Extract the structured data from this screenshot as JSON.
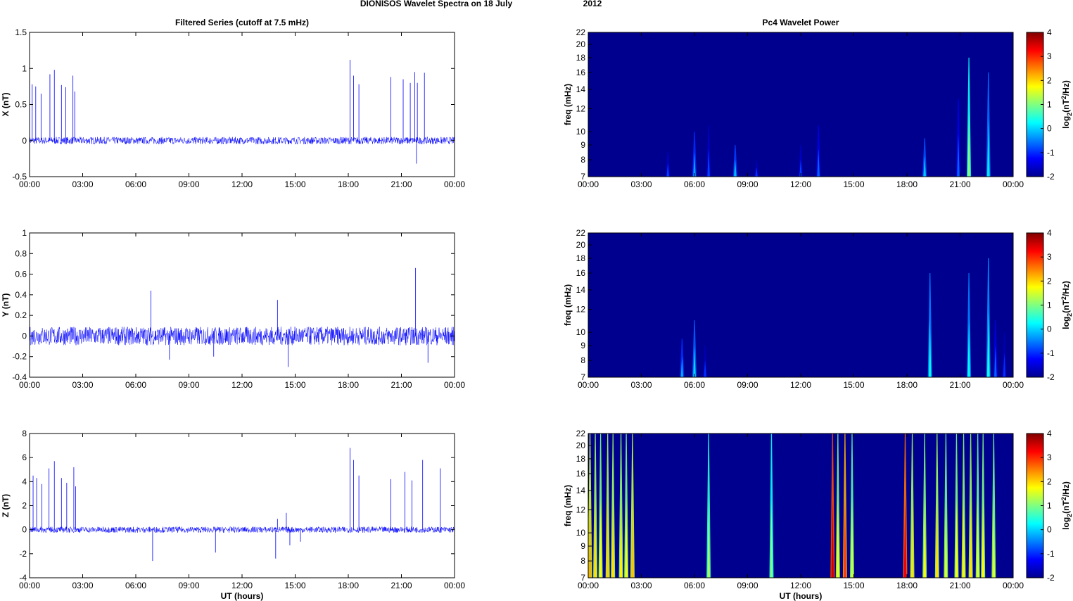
{
  "figure_title_left": "DIONISOS Wavelet Spectra on 18 July",
  "figure_title_right": "2012",
  "colors": {
    "trace": "#0000ff",
    "background": "#00008f"
  },
  "time_ticks": [
    "00:00",
    "03:00",
    "06:00",
    "09:00",
    "12:00",
    "15:00",
    "18:00",
    "21:00",
    "00:00"
  ],
  "chart_data": [
    {
      "type": "line",
      "title": "Filtered Series (cutoff at 7.5 mHz)",
      "xlabel": "",
      "ylabel": "X (nT)",
      "xlim": [
        0,
        24
      ],
      "ylim": [
        -0.5,
        1.5
      ],
      "yticks": [
        "1.5",
        "1",
        "0.5",
        "0",
        "-0.5"
      ],
      "ytick_values": [
        1.5,
        1,
        0.5,
        0,
        -0.5
      ],
      "noise_amplitude": 0.05,
      "spikes": [
        {
          "t": 0.15,
          "v": 0.78
        },
        {
          "t": 0.35,
          "v": 0.75
        },
        {
          "t": 0.65,
          "v": 0.65
        },
        {
          "t": 1.15,
          "v": 0.92
        },
        {
          "t": 1.4,
          "v": 0.98
        },
        {
          "t": 1.8,
          "v": 0.77
        },
        {
          "t": 2.05,
          "v": 0.74
        },
        {
          "t": 2.45,
          "v": 0.9
        },
        {
          "t": 2.55,
          "v": 0.68
        },
        {
          "t": 18.1,
          "v": 1.12
        },
        {
          "t": 18.3,
          "v": 0.9
        },
        {
          "t": 18.6,
          "v": 0.78
        },
        {
          "t": 20.4,
          "v": 0.88
        },
        {
          "t": 21.1,
          "v": 0.85
        },
        {
          "t": 21.5,
          "v": 0.8
        },
        {
          "t": 21.75,
          "v": 0.95
        },
        {
          "t": 21.9,
          "v": 0.8
        },
        {
          "t": 22.3,
          "v": 0.94
        },
        {
          "t": 21.85,
          "v": -0.32
        }
      ]
    },
    {
      "type": "heatmap",
      "title": "Pc4 Wavelet Power",
      "xlabel": "",
      "ylabel": "freq (mHz)",
      "xlim": [
        0,
        24
      ],
      "ylim": [
        7,
        22
      ],
      "yscale": "log",
      "yticks": [
        7,
        8,
        9,
        10,
        12,
        14,
        16,
        18,
        20,
        22
      ],
      "colorbar_label": "log2(nT2/Hz)",
      "colorbar_ticks": [
        4,
        3,
        2,
        1,
        0,
        -1,
        -2
      ],
      "clim": [
        -2,
        4
      ],
      "bursts": [
        {
          "t": 4.5,
          "level": -1.6,
          "fmax": 8.5
        },
        {
          "t": 6.0,
          "level": -1.0,
          "fmax": 10
        },
        {
          "t": 6.8,
          "level": -1.6,
          "fmax": 10.5
        },
        {
          "t": 8.3,
          "level": -0.9,
          "fmax": 9
        },
        {
          "t": 9.5,
          "level": -1.7,
          "fmax": 8
        },
        {
          "t": 12.0,
          "level": -1.6,
          "fmax": 9
        },
        {
          "t": 13.0,
          "level": -1.4,
          "fmax": 10.5
        },
        {
          "t": 19.0,
          "level": -0.8,
          "fmax": 9.5
        },
        {
          "t": 20.9,
          "level": -1.4,
          "fmax": 13
        },
        {
          "t": 21.5,
          "level": 0.3,
          "fmax": 18
        },
        {
          "t": 22.6,
          "level": -0.6,
          "fmax": 16
        }
      ]
    },
    {
      "type": "line",
      "title": "",
      "xlabel": "",
      "ylabel": "Y (nT)",
      "xlim": [
        0,
        24
      ],
      "ylim": [
        -0.4,
        1
      ],
      "yticks": [
        "1",
        "0.8",
        "0.6",
        "0.4",
        "0.2",
        "0",
        "-0.2",
        "-0.4"
      ],
      "ytick_values": [
        1,
        0.8,
        0.6,
        0.4,
        0.2,
        0,
        -0.2,
        -0.4
      ],
      "noise_amplitude": 0.09,
      "spikes": [
        {
          "t": 6.85,
          "v": 0.44
        },
        {
          "t": 14.6,
          "v": -0.3
        },
        {
          "t": 14.0,
          "v": 0.35
        },
        {
          "t": 21.8,
          "v": 0.66
        },
        {
          "t": 22.5,
          "v": -0.26
        },
        {
          "t": 7.9,
          "v": -0.23
        },
        {
          "t": 10.4,
          "v": -0.2
        }
      ]
    },
    {
      "type": "heatmap",
      "title": "",
      "xlabel": "",
      "ylabel": "freq (mHz)",
      "xlim": [
        0,
        24
      ],
      "ylim": [
        7,
        22
      ],
      "yscale": "log",
      "yticks": [
        7,
        8,
        9,
        10,
        12,
        14,
        16,
        18,
        20,
        22
      ],
      "colorbar_label": "log2(nT2/Hz)",
      "colorbar_ticks": [
        4,
        3,
        2,
        1,
        0,
        -1,
        -2
      ],
      "clim": [
        -2,
        4
      ],
      "bursts": [
        {
          "t": 5.3,
          "level": -1.0,
          "fmax": 9.5
        },
        {
          "t": 6.0,
          "level": -0.7,
          "fmax": 11
        },
        {
          "t": 6.6,
          "level": -1.7,
          "fmax": 9
        },
        {
          "t": 19.3,
          "level": -0.5,
          "fmax": 16
        },
        {
          "t": 21.5,
          "level": -0.5,
          "fmax": 16
        },
        {
          "t": 22.6,
          "level": -0.4,
          "fmax": 18
        },
        {
          "t": 23.0,
          "level": -1.4,
          "fmax": 11
        },
        {
          "t": 23.5,
          "level": -1.7,
          "fmax": 10
        }
      ]
    },
    {
      "type": "line",
      "title": "",
      "xlabel": "UT (hours)",
      "ylabel": "Z (nT)",
      "xlim": [
        0,
        24
      ],
      "ylim": [
        -4,
        8
      ],
      "yticks": [
        "8",
        "6",
        "4",
        "2",
        "0",
        "-2",
        "-4"
      ],
      "ytick_values": [
        8,
        6,
        4,
        2,
        0,
        -2,
        -4
      ],
      "noise_amplitude": 0.25,
      "spikes": [
        {
          "t": 0.2,
          "v": 4.5
        },
        {
          "t": 0.4,
          "v": 4.3
        },
        {
          "t": 0.7,
          "v": 3.8
        },
        {
          "t": 1.1,
          "v": 5.1
        },
        {
          "t": 1.4,
          "v": 5.7
        },
        {
          "t": 1.8,
          "v": 4.3
        },
        {
          "t": 2.1,
          "v": 3.9
        },
        {
          "t": 2.5,
          "v": 5.2
        },
        {
          "t": 2.6,
          "v": 3.6
        },
        {
          "t": 6.95,
          "v": -2.6
        },
        {
          "t": 10.5,
          "v": -1.9
        },
        {
          "t": 13.9,
          "v": -2.4
        },
        {
          "t": 14.0,
          "v": 0.9
        },
        {
          "t": 14.5,
          "v": 1.4
        },
        {
          "t": 14.7,
          "v": -1.3
        },
        {
          "t": 15.3,
          "v": -1.0
        },
        {
          "t": 18.1,
          "v": 6.8
        },
        {
          "t": 18.3,
          "v": 5.8
        },
        {
          "t": 18.6,
          "v": 4.5
        },
        {
          "t": 20.4,
          "v": 4.2
        },
        {
          "t": 21.2,
          "v": 4.8
        },
        {
          "t": 21.6,
          "v": 4.1
        },
        {
          "t": 22.2,
          "v": 5.8
        },
        {
          "t": 23.2,
          "v": 5.1
        }
      ]
    },
    {
      "type": "heatmap",
      "title": "",
      "xlabel": "UT (hours)",
      "ylabel": "freq (mHz)",
      "xlim": [
        0,
        24
      ],
      "ylim": [
        7,
        22
      ],
      "yscale": "log",
      "yticks": [
        7,
        8,
        9,
        10,
        12,
        14,
        16,
        18,
        20,
        22
      ],
      "colorbar_label": "log2(nT2/Hz)",
      "colorbar_ticks": [
        4,
        3,
        2,
        1,
        0,
        -1,
        -2
      ],
      "clim": [
        -2,
        4
      ],
      "bursts": [
        {
          "t": 0.1,
          "level": 1.5,
          "fmax": 22
        },
        {
          "t": 0.4,
          "level": 1.2,
          "fmax": 22
        },
        {
          "t": 0.7,
          "level": 1.0,
          "fmax": 22
        },
        {
          "t": 1.1,
          "level": 1.3,
          "fmax": 22
        },
        {
          "t": 1.4,
          "level": 1.2,
          "fmax": 22
        },
        {
          "t": 1.85,
          "level": 1.1,
          "fmax": 22
        },
        {
          "t": 2.15,
          "level": 1.0,
          "fmax": 22
        },
        {
          "t": 2.5,
          "level": 1.4,
          "fmax": 22
        },
        {
          "t": 6.8,
          "level": 0.5,
          "fmax": 22
        },
        {
          "t": 10.35,
          "level": 0.3,
          "fmax": 22
        },
        {
          "t": 13.8,
          "level": 2.8,
          "fmax": 22
        },
        {
          "t": 14.1,
          "level": 1.0,
          "fmax": 22
        },
        {
          "t": 14.5,
          "level": 2.2,
          "fmax": 22
        },
        {
          "t": 14.9,
          "level": 0.8,
          "fmax": 22
        },
        {
          "t": 17.9,
          "level": 2.6,
          "fmax": 22
        },
        {
          "t": 18.3,
          "level": 1.2,
          "fmax": 22
        },
        {
          "t": 19.0,
          "level": 1.0,
          "fmax": 22
        },
        {
          "t": 19.7,
          "level": 1.2,
          "fmax": 22
        },
        {
          "t": 20.2,
          "level": 0.9,
          "fmax": 22
        },
        {
          "t": 20.8,
          "level": 1.0,
          "fmax": 22
        },
        {
          "t": 21.2,
          "level": 1.1,
          "fmax": 22
        },
        {
          "t": 21.6,
          "level": 1.2,
          "fmax": 22
        },
        {
          "t": 22.0,
          "level": 0.9,
          "fmax": 22
        },
        {
          "t": 22.3,
          "level": 1.0,
          "fmax": 22
        },
        {
          "t": 22.9,
          "level": 0.9,
          "fmax": 22
        }
      ]
    }
  ]
}
